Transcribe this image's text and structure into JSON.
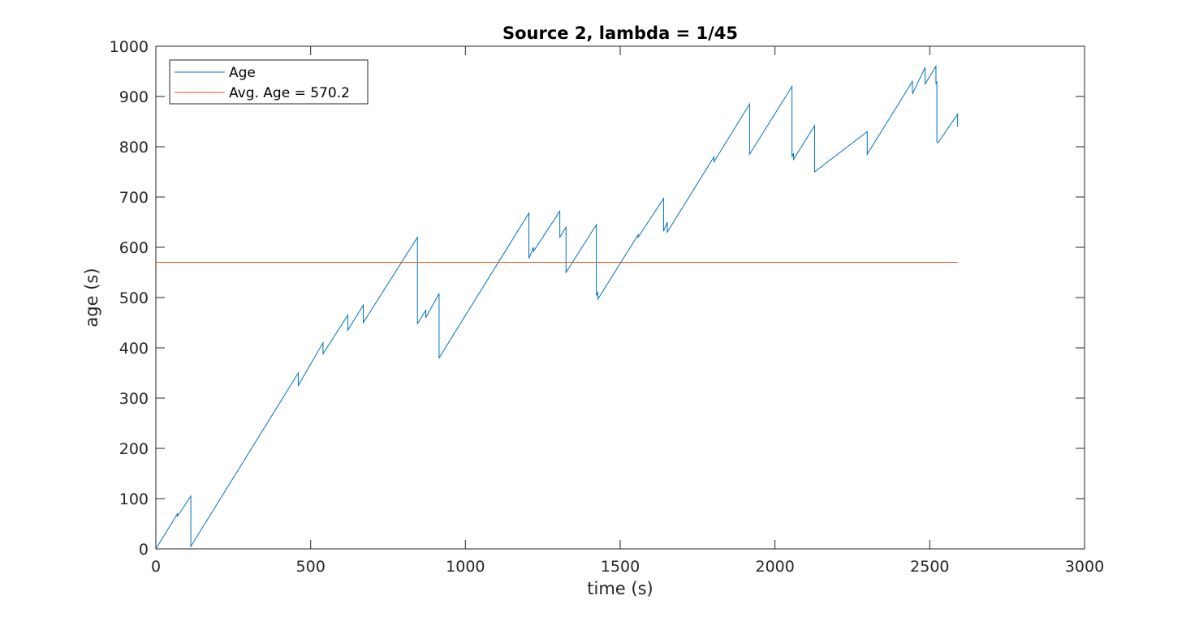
{
  "chart_data": {
    "type": "line",
    "title": "Source 2, lambda = 1/45",
    "xlabel": "time (s)",
    "ylabel": "age (s)",
    "xlim": [
      0,
      3000
    ],
    "ylim": [
      0,
      1000
    ],
    "xticks": [
      0,
      500,
      1000,
      1500,
      2000,
      2500,
      3000
    ],
    "yticks": [
      0,
      100,
      200,
      300,
      400,
      500,
      600,
      700,
      800,
      900,
      1000
    ],
    "xtick_labels": [
      "0",
      "500",
      "1000",
      "1500",
      "2000",
      "2500",
      "3000"
    ],
    "ytick_labels": [
      "0",
      "100",
      "200",
      "300",
      "400",
      "500",
      "600",
      "700",
      "800",
      "900",
      "1000"
    ],
    "grid": false,
    "legend_position": "top-left",
    "series": [
      {
        "name": "Age",
        "color": "#0072BD",
        "x": [
          0,
          70,
          70,
          113,
          113,
          460,
          460,
          540,
          540,
          620,
          620,
          670,
          670,
          845,
          845,
          872,
          872,
          915,
          915,
          1205,
          1205,
          1220,
          1220,
          1305,
          1305,
          1325,
          1325,
          1423,
          1423,
          1428,
          1428,
          1558,
          1558,
          1640,
          1640,
          1652,
          1652,
          1803,
          1803,
          1918,
          1918,
          2055,
          2055,
          2060,
          2060,
          2128,
          2128,
          2298,
          2298,
          2444,
          2444,
          2485,
          2485,
          2520,
          2520,
          2523,
          2523,
          2527,
          2527,
          2590,
          2590
        ],
        "y": [
          0,
          70,
          65,
          105,
          5,
          350,
          325,
          410,
          388,
          465,
          435,
          485,
          450,
          620,
          448,
          475,
          460,
          508,
          380,
          668,
          578,
          600,
          592,
          672,
          620,
          640,
          550,
          645,
          505,
          510,
          497,
          625,
          620,
          697,
          632,
          650,
          630,
          780,
          770,
          885,
          785,
          920,
          780,
          787,
          775,
          842,
          750,
          830,
          785,
          930,
          905,
          958,
          925,
          960,
          925,
          930,
          810,
          808,
          808,
          865,
          840
        ]
      },
      {
        "name": "Avg. Age = 570.2",
        "color": "#D95319",
        "x": [
          0,
          2590
        ],
        "y": [
          570.2,
          570.2
        ]
      }
    ]
  }
}
